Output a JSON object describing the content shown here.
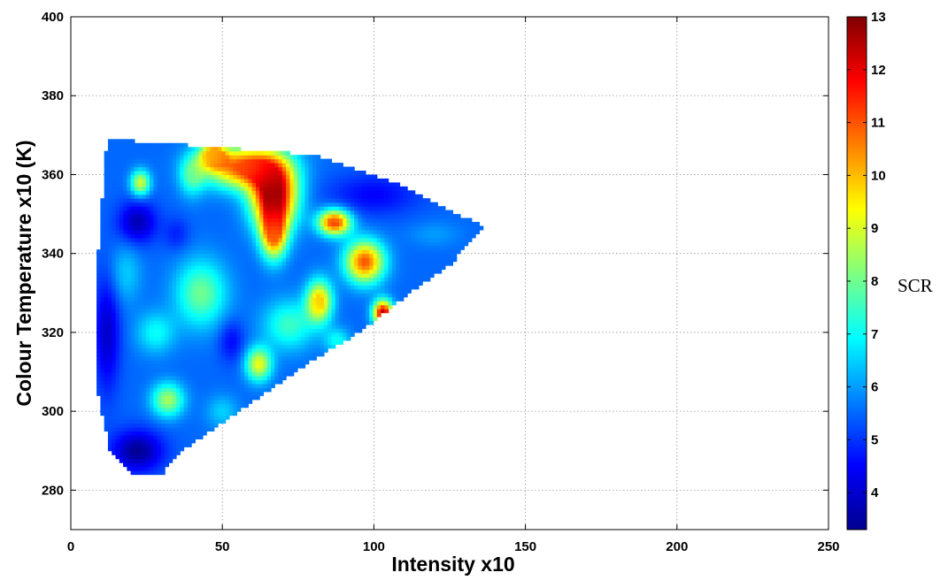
{
  "chart_data": {
    "type": "heatmap",
    "title": "",
    "xlabel": "Intensity x10",
    "ylabel": "Colour Temperature x10 (K)",
    "xlim": [
      0,
      250
    ],
    "ylim": [
      270,
      400
    ],
    "xticks": [
      0,
      50,
      100,
      150,
      200,
      250
    ],
    "yticks": [
      280,
      300,
      320,
      340,
      360,
      380,
      400
    ],
    "grid": true,
    "colormap": "jet",
    "colorbar": {
      "label": "SCR",
      "range": [
        3.3,
        13
      ],
      "ticks": [
        4,
        5,
        6,
        7,
        8,
        9,
        10,
        11,
        12,
        13
      ]
    },
    "region_outline": [
      [
        12,
        369
      ],
      [
        30,
        368
      ],
      [
        47,
        367
      ],
      [
        65,
        366
      ],
      [
        80,
        365
      ],
      [
        95,
        361
      ],
      [
        110,
        357
      ],
      [
        125,
        351
      ],
      [
        136,
        347
      ],
      [
        125,
        337
      ],
      [
        110,
        329
      ],
      [
        95,
        320
      ],
      [
        80,
        313
      ],
      [
        65,
        305
      ],
      [
        50,
        297
      ],
      [
        35,
        289
      ],
      [
        30,
        284
      ],
      [
        20,
        284
      ],
      [
        13,
        290
      ],
      [
        10,
        300
      ],
      [
        8,
        310
      ],
      [
        8,
        320
      ],
      [
        9,
        330
      ],
      [
        9,
        340
      ],
      [
        10,
        350
      ],
      [
        11,
        360
      ]
    ],
    "background_value": 5.5,
    "hotspots": [
      {
        "x": 67,
        "y": 355,
        "value": 13.0,
        "rx": 7,
        "ry": 8
      },
      {
        "x": 57,
        "y": 362,
        "value": 11.0,
        "rx": 12,
        "ry": 5
      },
      {
        "x": 47,
        "y": 365,
        "value": 10.0,
        "rx": 4,
        "ry": 3
      },
      {
        "x": 67,
        "y": 345,
        "value": 10.5,
        "rx": 4,
        "ry": 6
      },
      {
        "x": 87,
        "y": 348,
        "value": 11.5,
        "rx": 5,
        "ry": 3
      },
      {
        "x": 97,
        "y": 338,
        "value": 11.0,
        "rx": 6,
        "ry": 5
      },
      {
        "x": 103,
        "y": 325,
        "value": 12.5,
        "rx": 3,
        "ry": 3
      },
      {
        "x": 82,
        "y": 328,
        "value": 10.0,
        "rx": 4,
        "ry": 5
      },
      {
        "x": 62,
        "y": 312,
        "value": 9.2,
        "rx": 4,
        "ry": 4
      },
      {
        "x": 72,
        "y": 322,
        "value": 7.5,
        "rx": 8,
        "ry": 6
      },
      {
        "x": 40,
        "y": 360,
        "value": 7.5,
        "rx": 4,
        "ry": 5
      },
      {
        "x": 23,
        "y": 358,
        "value": 9.0,
        "rx": 3,
        "ry": 3
      },
      {
        "x": 18,
        "y": 335,
        "value": 6.5,
        "rx": 5,
        "ry": 7
      },
      {
        "x": 43,
        "y": 330,
        "value": 8.0,
        "rx": 8,
        "ry": 8
      },
      {
        "x": 32,
        "y": 303,
        "value": 8.5,
        "rx": 5,
        "ry": 4
      },
      {
        "x": 28,
        "y": 320,
        "value": 7.0,
        "rx": 6,
        "ry": 5
      },
      {
        "x": 22,
        "y": 348,
        "value": 3.8,
        "rx": 6,
        "ry": 5
      },
      {
        "x": 22,
        "y": 290,
        "value": 3.5,
        "rx": 8,
        "ry": 5
      },
      {
        "x": 12,
        "y": 320,
        "value": 4.0,
        "rx": 4,
        "ry": 14
      },
      {
        "x": 100,
        "y": 355,
        "value": 4.5,
        "rx": 14,
        "ry": 5
      },
      {
        "x": 53,
        "y": 318,
        "value": 4.5,
        "rx": 4,
        "ry": 5
      },
      {
        "x": 35,
        "y": 345,
        "value": 4.8,
        "rx": 4,
        "ry": 4
      },
      {
        "x": 120,
        "y": 345,
        "value": 6.0,
        "rx": 8,
        "ry": 3
      },
      {
        "x": 88,
        "y": 318,
        "value": 7.0,
        "rx": 4,
        "ry": 3
      },
      {
        "x": 50,
        "y": 300,
        "value": 6.5,
        "rx": 5,
        "ry": 4
      }
    ]
  }
}
